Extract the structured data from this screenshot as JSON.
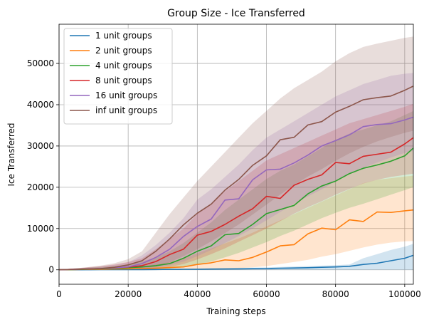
{
  "chart_data": {
    "type": "line",
    "title": "Group Size - Ice Transferred",
    "xlabel": "Training steps",
    "ylabel": "Ice Transferred",
    "xlim": [
      0,
      102500
    ],
    "ylim": [
      -3500,
      59500
    ],
    "xticks": [
      0,
      20000,
      40000,
      60000,
      80000,
      100000
    ],
    "xtick_labels": [
      "0",
      "20000",
      "40000",
      "60000",
      "80000",
      "100000"
    ],
    "yticks": [
      0,
      10000,
      20000,
      30000,
      40000,
      50000
    ],
    "ytick_labels": [
      "0",
      "10000",
      "20000",
      "30000",
      "40000",
      "50000"
    ],
    "grid": true,
    "legend_position": "top-left",
    "x": [
      0,
      4000,
      8000,
      12000,
      16000,
      20000,
      24000,
      28000,
      32000,
      36000,
      40000,
      44000,
      48000,
      52000,
      56000,
      60000,
      64000,
      68000,
      72000,
      76000,
      80000,
      84000,
      88000,
      92000,
      96000,
      100000,
      102500
    ],
    "series": [
      {
        "name": "1 unit groups",
        "color": "#1f77b4",
        "values": [
          0,
          10,
          20,
          30,
          40,
          50,
          60,
          80,
          100,
          120,
          150,
          180,
          200,
          220,
          260,
          300,
          380,
          440,
          500,
          600,
          700,
          850,
          1300,
          1600,
          2200,
          2800,
          3500
        ],
        "lower": [
          0,
          0,
          0,
          0,
          0,
          0,
          0,
          0,
          0,
          0,
          0,
          0,
          0,
          0,
          0,
          0,
          0,
          0,
          0,
          0,
          0,
          0,
          0,
          0,
          0,
          0,
          0
        ],
        "upper": [
          0,
          30,
          50,
          80,
          100,
          120,
          150,
          180,
          220,
          260,
          300,
          360,
          420,
          480,
          540,
          600,
          700,
          800,
          900,
          1000,
          1100,
          1300,
          2800,
          3800,
          4800,
          5600,
          6300
        ]
      },
      {
        "name": "2 unit groups",
        "color": "#ff7f0e",
        "values": [
          0,
          50,
          100,
          150,
          200,
          250,
          300,
          400,
          550,
          700,
          1300,
          1700,
          2400,
          2200,
          3000,
          4300,
          5800,
          6100,
          8700,
          10100,
          9700,
          12100,
          11700,
          14000,
          13900,
          14300,
          14500
        ],
        "lower": [
          0,
          0,
          0,
          0,
          0,
          0,
          0,
          0,
          0,
          0,
          100,
          200,
          300,
          400,
          600,
          900,
          1400,
          1900,
          2400,
          3200,
          3800,
          4600,
          5400,
          6100,
          6600,
          6900,
          7000
        ],
        "upper": [
          0,
          200,
          300,
          400,
          500,
          700,
          900,
          1300,
          1900,
          2700,
          4000,
          5200,
          6400,
          7600,
          9000,
          10500,
          12000,
          13500,
          15000,
          16500,
          18000,
          19500,
          21000,
          21800,
          22200,
          22600,
          22800
        ]
      },
      {
        "name": "4 unit groups",
        "color": "#2ca02c",
        "values": [
          0,
          80,
          150,
          250,
          350,
          500,
          700,
          1000,
          1500,
          2800,
          4500,
          5800,
          8500,
          8800,
          11000,
          13600,
          14600,
          15600,
          18400,
          20300,
          21500,
          23300,
          24600,
          25400,
          26300,
          27600,
          29500
        ],
        "lower": [
          0,
          0,
          0,
          0,
          0,
          0,
          0,
          100,
          300,
          600,
          1200,
          2000,
          3000,
          4100,
          5400,
          6700,
          8200,
          9500,
          11000,
          12500,
          13800,
          15000,
          16000,
          17100,
          18200,
          19300,
          20000
        ],
        "upper": [
          0,
          300,
          500,
          700,
          900,
          1300,
          2000,
          3000,
          4500,
          6500,
          9000,
          11500,
          14500,
          17000,
          19500,
          22000,
          24000,
          25500,
          27500,
          29500,
          31500,
          33000,
          34000,
          35000,
          36000,
          37500,
          38500
        ]
      },
      {
        "name": "8 unit groups",
        "color": "#d62728",
        "values": [
          0,
          100,
          200,
          300,
          450,
          650,
          1000,
          2000,
          3700,
          5000,
          8400,
          9300,
          11000,
          13000,
          14800,
          17800,
          17300,
          20500,
          21900,
          23000,
          26000,
          25700,
          27500,
          28000,
          28500,
          30500,
          32000
        ],
        "lower": [
          0,
          0,
          0,
          0,
          0,
          0,
          100,
          300,
          700,
          1400,
          2500,
          3800,
          5200,
          6800,
          8400,
          10000,
          11800,
          13600,
          15200,
          16600,
          18200,
          19600,
          20900,
          21800,
          22500,
          23000,
          23300
        ],
        "upper": [
          0,
          300,
          600,
          900,
          1300,
          1900,
          2800,
          5000,
          7500,
          10000,
          13500,
          16000,
          19000,
          21500,
          24000,
          26500,
          28000,
          29500,
          31000,
          32500,
          34000,
          35500,
          36500,
          37500,
          38500,
          39500,
          40200
        ]
      },
      {
        "name": "16 unit groups",
        "color": "#9467bd",
        "values": [
          0,
          100,
          200,
          300,
          450,
          700,
          1500,
          3000,
          5000,
          8100,
          10500,
          12300,
          16900,
          17200,
          21800,
          24200,
          24400,
          25900,
          27800,
          30000,
          31300,
          32700,
          34700,
          35200,
          35400,
          36300,
          37000
        ],
        "lower": [
          0,
          0,
          0,
          0,
          0,
          50,
          200,
          500,
          1100,
          2000,
          3300,
          4800,
          6500,
          8200,
          10000,
          12000,
          14000,
          16000,
          17800,
          19500,
          21500,
          23200,
          24700,
          26000,
          27200,
          28300,
          28800
        ],
        "upper": [
          0,
          300,
          500,
          800,
          1200,
          1800,
          3500,
          6000,
          9000,
          12500,
          17000,
          19500,
          22500,
          25500,
          29000,
          32000,
          34000,
          36000,
          38000,
          40000,
          42000,
          43500,
          45000,
          46000,
          47000,
          47500,
          47700
        ]
      },
      {
        "name": "inf unit groups",
        "color": "#8c564b",
        "values": [
          0,
          100,
          200,
          300,
          600,
          1200,
          2200,
          4500,
          7500,
          10900,
          13700,
          15900,
          19300,
          21900,
          25300,
          27600,
          31500,
          32100,
          35100,
          35900,
          38200,
          39600,
          41200,
          41700,
          42100,
          43500,
          44500
        ],
        "lower": [
          0,
          0,
          0,
          0,
          0,
          100,
          300,
          800,
          1800,
          3300,
          5000,
          6900,
          8900,
          11000,
          13400,
          15800,
          18200,
          20600,
          22600,
          24400,
          26400,
          28200,
          29800,
          31100,
          32200,
          33200,
          33700
        ],
        "upper": [
          0,
          300,
          600,
          1000,
          1600,
          2600,
          4500,
          9000,
          13500,
          17500,
          21500,
          25000,
          28500,
          32000,
          35500,
          38500,
          41500,
          44000,
          46000,
          48000,
          50500,
          52500,
          54000,
          54800,
          55500,
          56200,
          56500
        ]
      }
    ]
  }
}
